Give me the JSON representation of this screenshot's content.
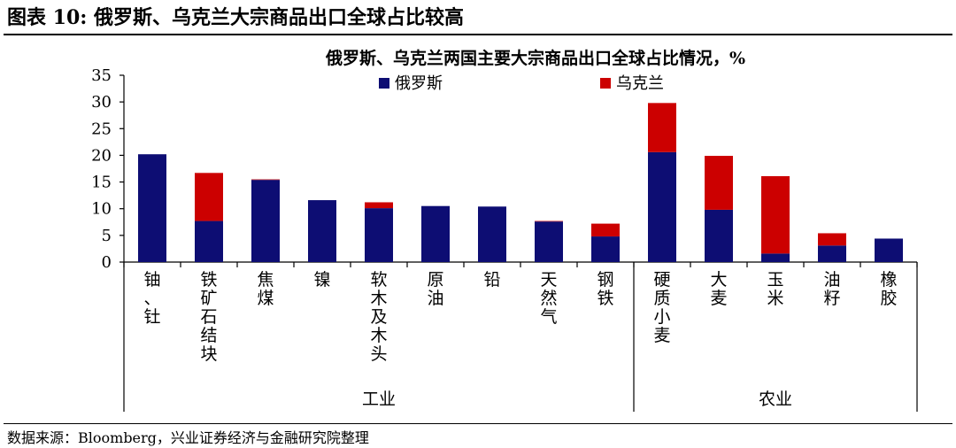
{
  "figure": {
    "title": "图表 10: 俄罗斯、乌克兰大宗商品出口全球占比较高",
    "source": "数据来源：Bloomberg，兴业证券经济与金融研究院整理"
  },
  "colors": {
    "russia": "#0d0d73",
    "ukraine": "#cc0000",
    "axis": "#000000"
  },
  "chart_data": {
    "type": "bar",
    "stacked": true,
    "title": "俄罗斯、乌克兰两国主要大宗商品出口全球占比情况，%",
    "xlabel": "",
    "ylabel": "",
    "ylim": [
      0,
      35
    ],
    "yticks": [
      "0",
      "5",
      "10",
      "15",
      "20",
      "25",
      "30",
      "35"
    ],
    "legend_position": "top",
    "grid": false,
    "categories": [
      "铀、钍",
      "铁矿石结块",
      "焦煤",
      "镍",
      "软木及木头",
      "原油",
      "铅",
      "天然气",
      "钢铁",
      "硬质小麦",
      "大麦",
      "玉米",
      "油籽",
      "橡胶"
    ],
    "series": [
      {
        "name": "俄罗斯",
        "values": [
          20.2,
          7.7,
          15.4,
          11.6,
          10.1,
          10.5,
          10.4,
          7.6,
          4.8,
          20.6,
          9.8,
          1.6,
          3.1,
          4.4
        ]
      },
      {
        "name": "乌克兰",
        "values": [
          0,
          9.0,
          0.1,
          0,
          1.1,
          0,
          0,
          0.1,
          2.4,
          9.2,
          10.1,
          14.5,
          2.3,
          0
        ]
      }
    ],
    "groups": [
      {
        "label": "工业",
        "count": 9
      },
      {
        "label": "农业",
        "count": 5
      }
    ]
  }
}
